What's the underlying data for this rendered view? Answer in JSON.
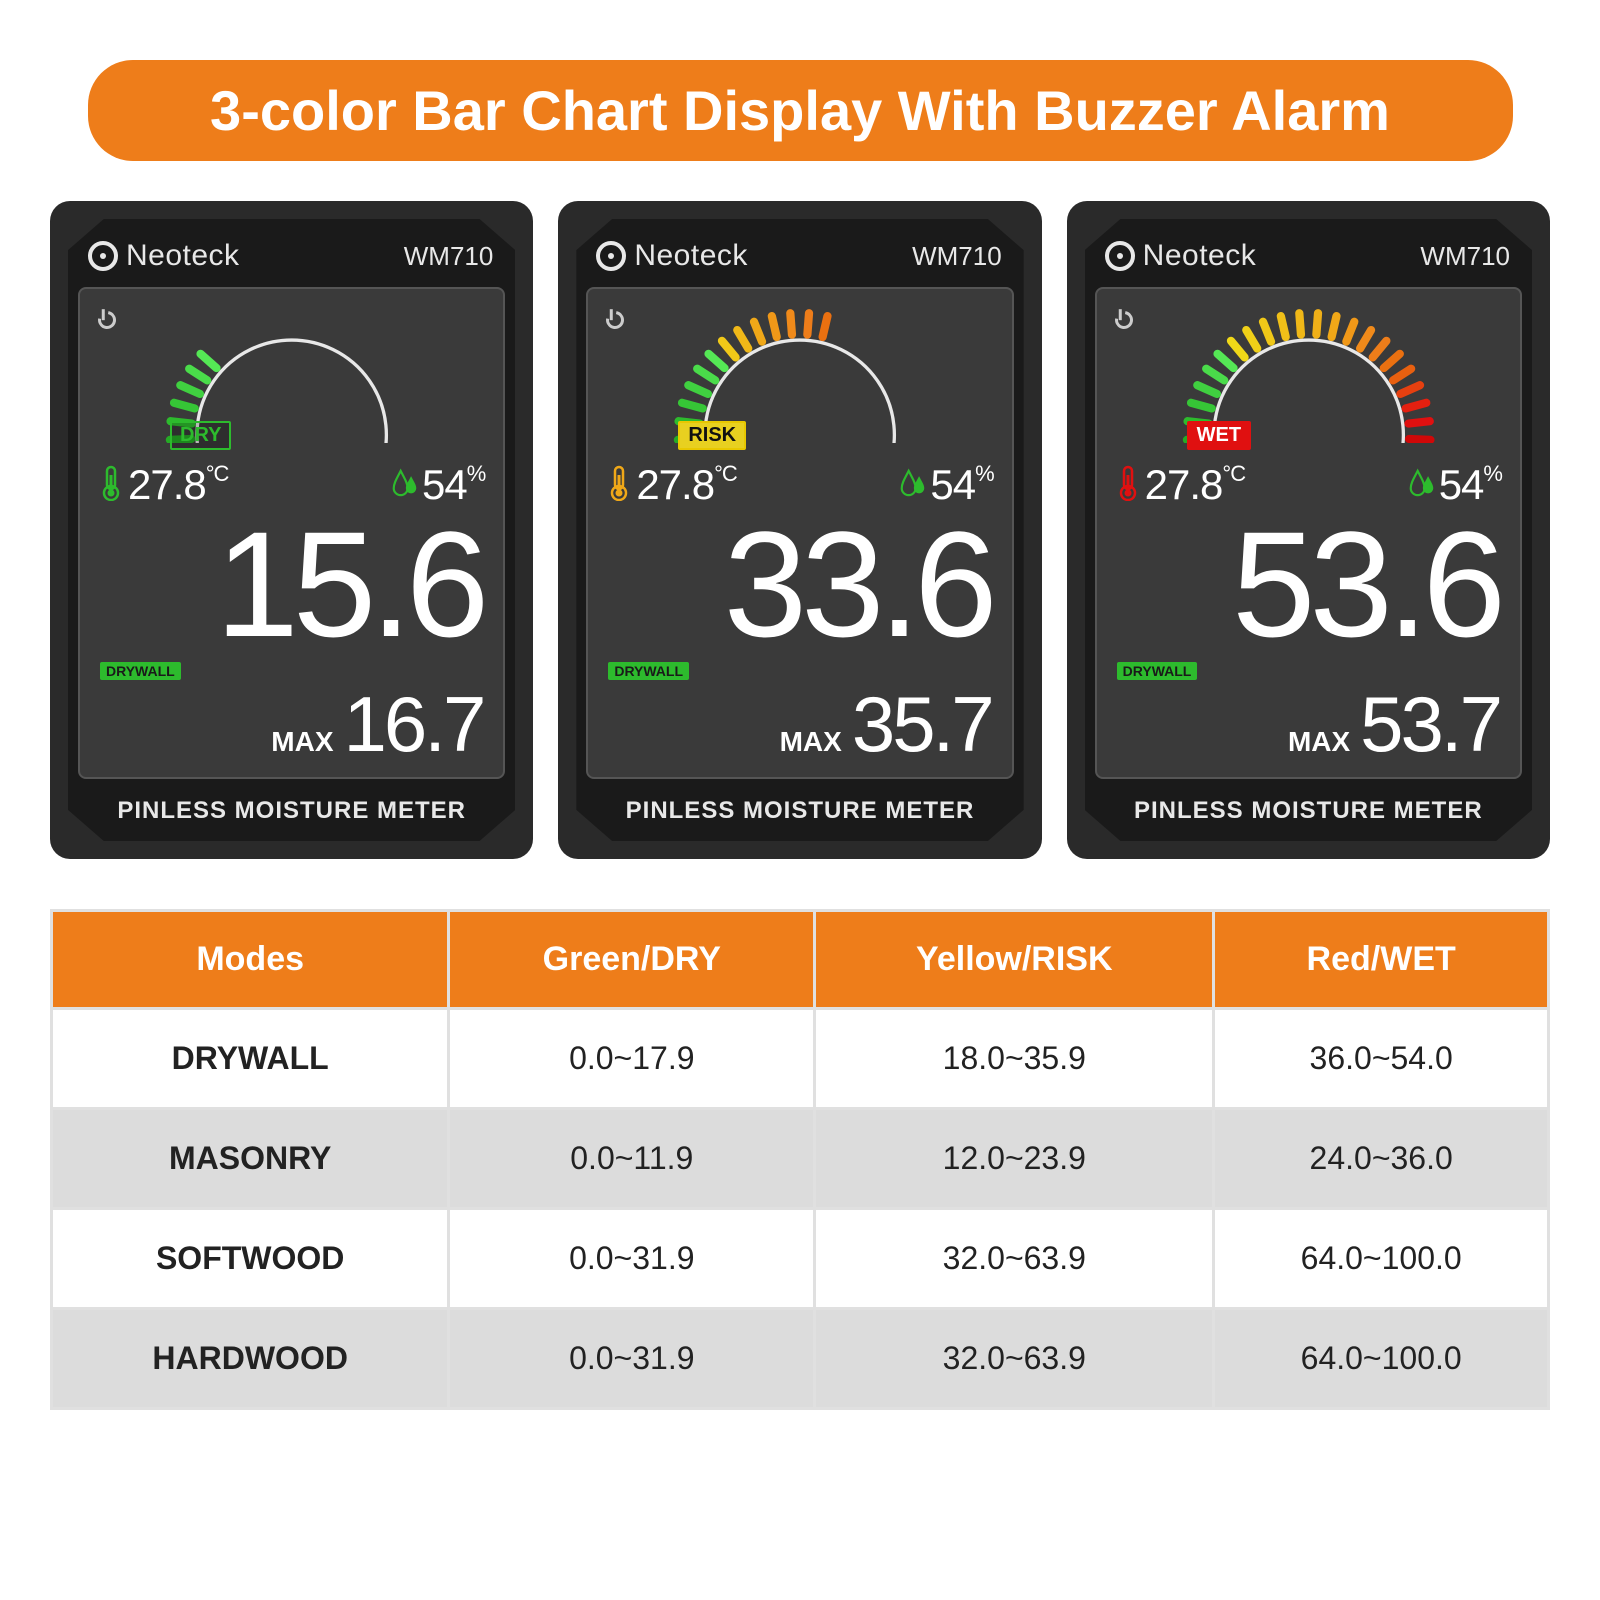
{
  "title": "3-color Bar Chart Display With Buzzer Alarm",
  "brand": "Neoteck",
  "model": "WM710",
  "footer": "PINLESS MOISTURE METER",
  "scale": {
    "min": "0",
    "max": "100"
  },
  "colors": {
    "accent": "#ee7d1a",
    "green": "#2dbb2d",
    "yellow": "#e8d020",
    "orange": "#f08a1a",
    "red": "#e01010",
    "arc": "#e8e8e8",
    "device_bg": "#2a2a2a",
    "screen_bg": "#3a3a3a"
  },
  "devices": [
    {
      "status_label": "DRY",
      "status_class": "tag-dry",
      "gauge_segments": [
        "#1a8a1a",
        "#1f9a1f",
        "#25aa25",
        "#2dbb2d",
        "#36c636",
        "#40d040",
        "#4adc4a",
        "#55e855"
      ],
      "temp": "27.8",
      "temp_unit": "°C",
      "hum": "54",
      "hum_unit": "%",
      "main": "15.6",
      "mode": "DRYWALL",
      "max_label": "MAX",
      "max": "16.7",
      "temp_icon_color": "#2dbb2d",
      "hum_icon_color": "#2dbb2d"
    },
    {
      "status_label": "RISK",
      "status_class": "tag-risk",
      "gauge_segments": [
        "#1a8a1a",
        "#1f9a1f",
        "#25aa25",
        "#2dbb2d",
        "#36c636",
        "#40d040",
        "#4adc4a",
        "#55e855",
        "#f0c818",
        "#f0b818",
        "#f0a818",
        "#f09818",
        "#f08a1a",
        "#ee7d1a",
        "#ea7010"
      ],
      "temp": "27.8",
      "temp_unit": "°C",
      "hum": "54",
      "hum_unit": "%",
      "main": "33.6",
      "mode": "DRYWALL",
      "max_label": "MAX",
      "max": "35.7",
      "temp_icon_color": "#f0a818",
      "hum_icon_color": "#2dbb2d"
    },
    {
      "status_label": "WET",
      "status_class": "tag-wet",
      "gauge_segments": [
        "#1a8a1a",
        "#1f9a1f",
        "#25aa25",
        "#2dbb2d",
        "#36c636",
        "#40d040",
        "#4adc4a",
        "#55e855",
        "#f0d818",
        "#f0d018",
        "#f0c818",
        "#f0c018",
        "#f0b818",
        "#f0b018",
        "#f0a818",
        "#f09818",
        "#f08a1a",
        "#ee7d1a",
        "#ea7010",
        "#e86010",
        "#e64010",
        "#e42010",
        "#e01010",
        "#d00808"
      ],
      "temp": "27.8",
      "temp_unit": "°C",
      "hum": "54",
      "hum_unit": "%",
      "main": "53.6",
      "mode": "DRYWALL",
      "max_label": "MAX",
      "max": "53.7",
      "temp_icon_color": "#e01010",
      "hum_icon_color": "#2dbb2d"
    }
  ],
  "table": {
    "columns": [
      "Modes",
      "Green/DRY",
      "Yellow/RISK",
      "Red/WET"
    ],
    "rows": [
      [
        "DRYWALL",
        "0.0~17.9",
        "18.0~35.9",
        "36.0~54.0"
      ],
      [
        "MASONRY",
        "0.0~11.9",
        "12.0~23.9",
        "24.0~36.0"
      ],
      [
        "SOFTWOOD",
        "0.0~31.9",
        "32.0~63.9",
        "64.0~100.0"
      ],
      [
        "HARDWOOD",
        "0.0~31.9",
        "32.0~63.9",
        "64.0~100.0"
      ]
    ]
  }
}
